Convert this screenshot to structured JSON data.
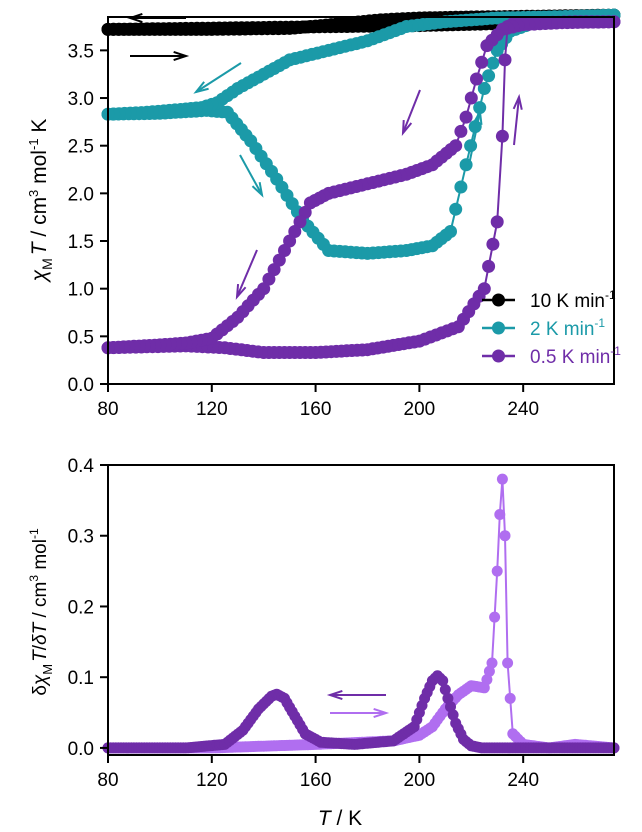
{
  "chart_data": [
    {
      "type": "scatter",
      "title": "",
      "xlabel": "",
      "ylabel_parts": {
        "sym": "χ",
        "sub": "M",
        "T": "T",
        "rest": " / cm",
        "e1": "3",
        "mid": " mol",
        "e2": "-1",
        "end": " K"
      },
      "xlim": [
        80,
        275
      ],
      "ylim": [
        0.0,
        3.85
      ],
      "x_ticks": [
        80,
        120,
        160,
        200,
        240
      ],
      "y_ticks": [
        0.0,
        0.5,
        1.0,
        1.5,
        2.0,
        2.5,
        3.0,
        3.5
      ],
      "y_tick_labels": [
        "0.0",
        "0.5",
        "1.0",
        "1.5",
        "2.0",
        "2.5",
        "3.0",
        "3.5"
      ],
      "legend_position": "right",
      "series": [
        {
          "name": "10 K min",
          "name_exp": "-1",
          "color": "#000000",
          "x": [
            80,
            110,
            140,
            170,
            200,
            230,
            260,
            275,
            275,
            250,
            220,
            200,
            185,
            170,
            150,
            120,
            100,
            80
          ],
          "y": [
            3.72,
            3.73,
            3.74,
            3.75,
            3.76,
            3.78,
            3.85,
            3.87,
            3.87,
            3.86,
            3.85,
            3.84,
            3.82,
            3.78,
            3.73,
            3.72,
            3.72,
            3.72
          ]
        },
        {
          "name": "2 K min",
          "name_exp": "-1",
          "color": "#1b9aa8",
          "x": [
            80,
            100,
            118,
            126,
            135,
            145,
            155,
            165,
            180,
            195,
            205,
            212,
            218,
            225,
            230,
            235,
            245,
            260,
            275,
            275,
            250,
            230,
            210,
            195,
            180,
            165,
            150,
            140,
            130,
            122,
            116,
            108,
            95,
            80
          ],
          "y": [
            2.83,
            2.84,
            2.87,
            2.85,
            2.55,
            2.15,
            1.72,
            1.4,
            1.37,
            1.4,
            1.45,
            1.6,
            2.3,
            3.1,
            3.5,
            3.7,
            3.8,
            3.84,
            3.87,
            3.87,
            3.85,
            3.84,
            3.8,
            3.75,
            3.6,
            3.5,
            3.4,
            3.25,
            3.1,
            2.95,
            2.9,
            2.88,
            2.85,
            2.83
          ]
        },
        {
          "name": "0.5 K min",
          "name_exp": "-1",
          "color": "#6f2da8",
          "x": [
            80,
            110,
            125,
            140,
            160,
            180,
            200,
            215,
            225,
            230,
            232,
            233,
            234,
            236,
            245,
            260,
            275,
            275,
            255,
            240,
            232,
            226,
            222,
            218,
            214,
            205,
            195,
            180,
            165,
            158,
            152,
            146,
            140,
            130,
            120,
            110,
            100,
            80
          ],
          "y": [
            0.38,
            0.4,
            0.38,
            0.33,
            0.33,
            0.36,
            0.45,
            0.6,
            1.0,
            1.7,
            2.6,
            3.4,
            3.75,
            3.78,
            3.79,
            3.8,
            3.8,
            3.8,
            3.79,
            3.77,
            3.72,
            3.55,
            3.2,
            2.8,
            2.5,
            2.3,
            2.2,
            2.1,
            2.0,
            1.9,
            1.6,
            1.3,
            1.0,
            0.7,
            0.48,
            0.43,
            0.41,
            0.38
          ]
        }
      ],
      "annotations": [
        "arrows along branches indicate sweep direction"
      ]
    },
    {
      "type": "scatter",
      "title": "",
      "xlabel_parts": {
        "T": "T",
        "rest": " / K"
      },
      "ylabel_parts": {
        "d1": "δ",
        "sym": "χ",
        "sub": "M",
        "T": "T",
        "slash": "/",
        "d2": "δT",
        "rest": " / cm",
        "e1": "3",
        "mid": " mol",
        "e2": "-1"
      },
      "xlim": [
        80,
        275
      ],
      "ylim": [
        -0.01,
        0.4
      ],
      "x_ticks": [
        80,
        120,
        160,
        200,
        240
      ],
      "x_tick_labels": [
        "80",
        "120",
        "160",
        "200",
        "240"
      ],
      "y_ticks": [
        0.0,
        0.1,
        0.2,
        0.3,
        0.4
      ],
      "y_tick_labels": [
        "0.0",
        "0.1",
        "0.2",
        "0.3",
        "0.4"
      ],
      "series": [
        {
          "color": "#b06ef0",
          "x": [
            80,
            120,
            160,
            190,
            200,
            205,
            210,
            215,
            220,
            225,
            228,
            230,
            231,
            232,
            233,
            234,
            236,
            240,
            250,
            260,
            275
          ],
          "y": [
            0.0,
            0.0,
            0.005,
            0.01,
            0.018,
            0.03,
            0.055,
            0.075,
            0.088,
            0.085,
            0.12,
            0.25,
            0.33,
            0.38,
            0.3,
            0.12,
            0.02,
            0.005,
            0.0,
            0.005,
            0.0
          ]
        },
        {
          "color": "#6f2da8",
          "x": [
            80,
            110,
            125,
            132,
            138,
            143,
            145,
            148,
            152,
            156,
            162,
            175,
            190,
            198,
            202,
            205,
            207,
            209,
            211,
            214,
            217,
            220,
            224,
            240,
            260,
            275
          ],
          "y": [
            0.0,
            0.0,
            0.005,
            0.025,
            0.055,
            0.073,
            0.076,
            0.07,
            0.045,
            0.02,
            0.008,
            0.005,
            0.01,
            0.03,
            0.07,
            0.095,
            0.102,
            0.095,
            0.07,
            0.035,
            0.012,
            0.003,
            0.0,
            0.0,
            0.0,
            0.0
          ]
        }
      ],
      "annotations": [
        "arrows indicate cooling and heating directions"
      ]
    }
  ]
}
